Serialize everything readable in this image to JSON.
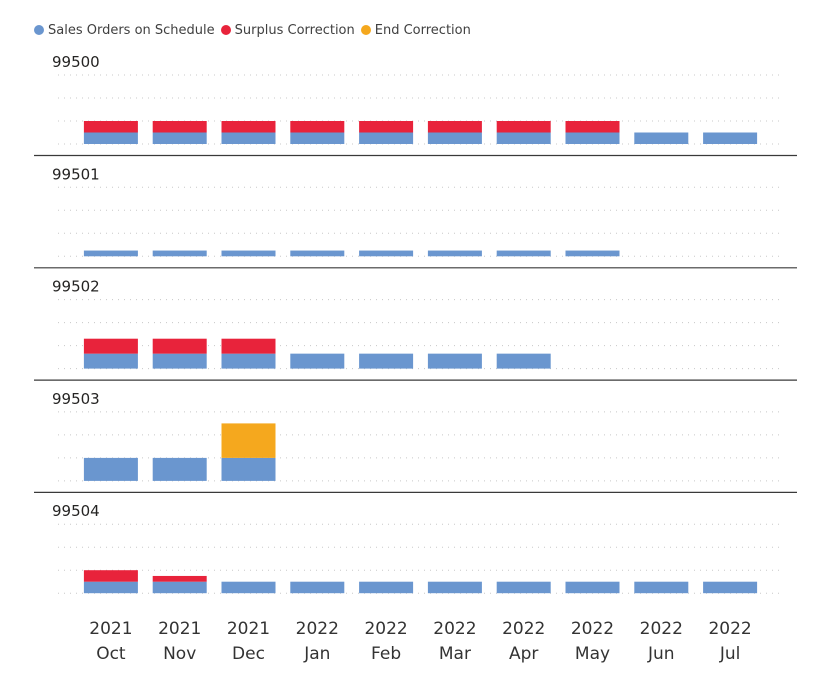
{
  "chart_data": {
    "type": "bar",
    "stacked": true,
    "legend_position": "top-left",
    "categories": [
      {
        "year": "2021",
        "month": "Oct"
      },
      {
        "year": "2021",
        "month": "Nov"
      },
      {
        "year": "2021",
        "month": "Dec"
      },
      {
        "year": "2022",
        "month": "Jan"
      },
      {
        "year": "2022",
        "month": "Feb"
      },
      {
        "year": "2022",
        "month": "Mar"
      },
      {
        "year": "2022",
        "month": "Apr"
      },
      {
        "year": "2022",
        "month": "May"
      },
      {
        "year": "2022",
        "month": "Jun"
      },
      {
        "year": "2022",
        "month": "Jul"
      }
    ],
    "series_info": [
      {
        "name": "Sales Orders on Schedule",
        "color": "#6A96CF"
      },
      {
        "name": "Surplus Correction",
        "color": "#E8233B"
      },
      {
        "name": "End Correction",
        "color": "#F5A81E"
      }
    ],
    "panels": [
      {
        "title": "99500",
        "ylim": [
          0,
          4
        ],
        "series": [
          {
            "name": "Sales Orders on Schedule",
            "values": [
              0.5,
              0.5,
              0.5,
              0.5,
              0.5,
              0.5,
              0.5,
              0.5,
              0.5,
              0.5
            ]
          },
          {
            "name": "Surplus Correction",
            "values": [
              0.5,
              0.5,
              0.5,
              0.5,
              0.5,
              0.5,
              0.5,
              0.5,
              0,
              0
            ]
          },
          {
            "name": "End Correction",
            "values": [
              0,
              0,
              0,
              0,
              0,
              0,
              0,
              0,
              0,
              0
            ]
          }
        ]
      },
      {
        "title": "99501",
        "ylim": [
          0,
          4
        ],
        "series": [
          {
            "name": "Sales Orders on Schedule",
            "values": [
              0.25,
              0.25,
              0.25,
              0.25,
              0.25,
              0.25,
              0.25,
              0.25,
              null,
              null
            ]
          },
          {
            "name": "Surplus Correction",
            "values": [
              0,
              0,
              0,
              0,
              0,
              0,
              0,
              0,
              null,
              null
            ]
          },
          {
            "name": "End Correction",
            "values": [
              0,
              0,
              0,
              0,
              0,
              0,
              0,
              0,
              null,
              null
            ]
          }
        ]
      },
      {
        "title": "99502",
        "ylim": [
          0,
          4
        ],
        "series": [
          {
            "name": "Sales Orders on Schedule",
            "values": [
              0.65,
              0.65,
              0.65,
              0.65,
              0.65,
              0.65,
              0.65,
              null,
              null,
              null
            ]
          },
          {
            "name": "Surplus Correction",
            "values": [
              0.65,
              0.65,
              0.65,
              0,
              0,
              0,
              0,
              null,
              null,
              null
            ]
          },
          {
            "name": "End Correction",
            "values": [
              0,
              0,
              0,
              0,
              0,
              0,
              0,
              null,
              null,
              null
            ]
          }
        ]
      },
      {
        "title": "99503",
        "ylim": [
          0,
          4
        ],
        "series": [
          {
            "name": "Sales Orders on Schedule",
            "values": [
              1.0,
              1.0,
              1.0,
              null,
              null,
              null,
              null,
              null,
              null,
              null
            ]
          },
          {
            "name": "Surplus Correction",
            "values": [
              0,
              0,
              0,
              null,
              null,
              null,
              null,
              null,
              null,
              null
            ]
          },
          {
            "name": "End Correction",
            "values": [
              0,
              0,
              1.5,
              null,
              null,
              null,
              null,
              null,
              null,
              null
            ]
          }
        ]
      },
      {
        "title": "99504",
        "ylim": [
          0,
          4
        ],
        "series": [
          {
            "name": "Sales Orders on Schedule",
            "values": [
              0.5,
              0.5,
              0.5,
              0.5,
              0.5,
              0.5,
              0.5,
              0.5,
              0.5,
              0.5
            ]
          },
          {
            "name": "Surplus Correction",
            "values": [
              0.5,
              0.25,
              0,
              0,
              0,
              0,
              0,
              0,
              0,
              0
            ]
          },
          {
            "name": "End Correction",
            "values": [
              0,
              0,
              0,
              0,
              0,
              0,
              0,
              0,
              0,
              0
            ]
          }
        ]
      }
    ],
    "title": "",
    "xlabel": "",
    "ylabel": "",
    "grid": true
  }
}
